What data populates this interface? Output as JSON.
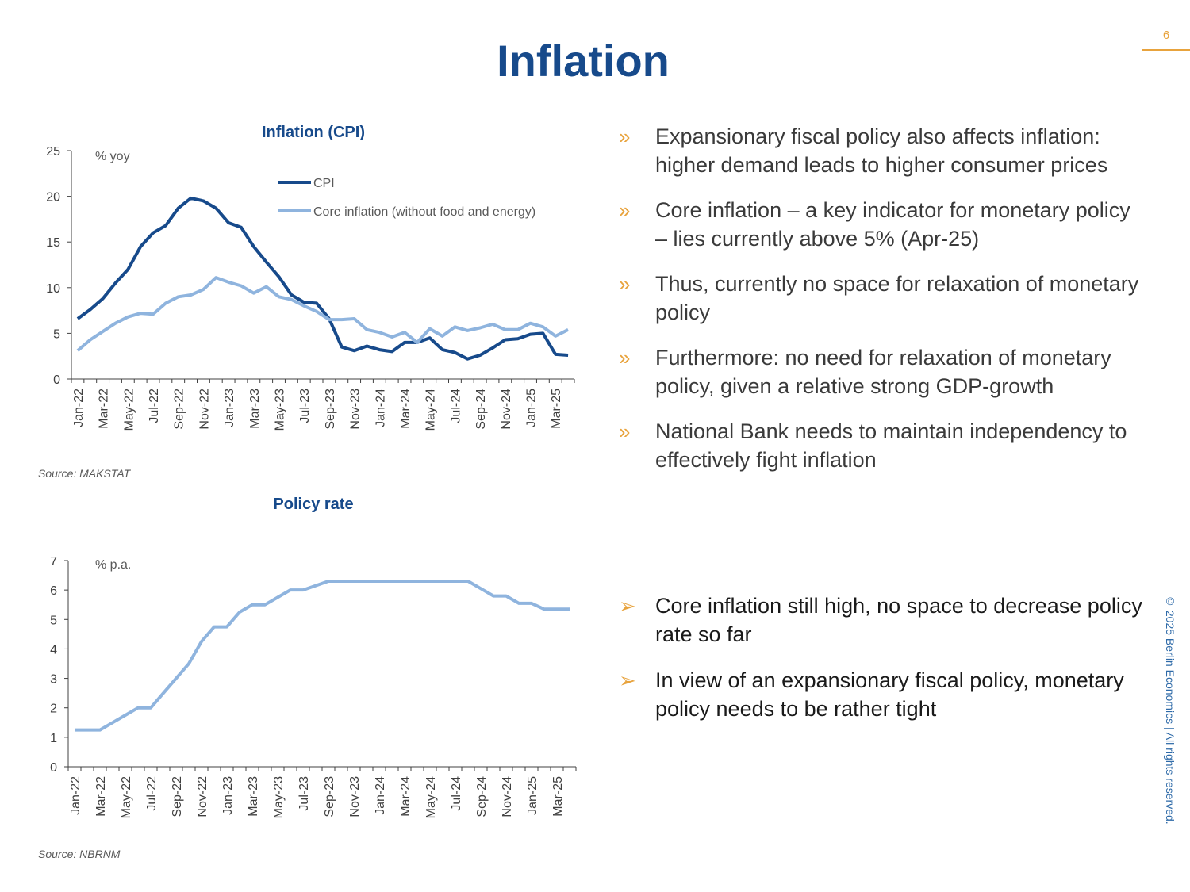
{
  "page": {
    "title": "Inflation",
    "page_number": "6",
    "copyright": "© 2025 Berlin Economics | All rights reserved."
  },
  "bullets": [
    {
      "marker": "»",
      "text": "Expansionary fiscal policy also affects inflation: higher demand leads to higher consumer prices"
    },
    {
      "marker": "»",
      "text": "Core inflation – a key indicator for monetary policy – lies currently above 5% (Apr-25)"
    },
    {
      "marker": "»",
      "text": "Thus, currently no space for relaxation of monetary policy"
    },
    {
      "marker": "»",
      "text": "Furthermore: no need for relaxation of monetary policy, given a relative strong GDP-growth"
    },
    {
      "marker": "»",
      "text": "National Bank needs to maintain independency to effectively fight inflation"
    }
  ],
  "conclusions": [
    {
      "marker": "➢",
      "text": "Core inflation still high, no space to decrease policy rate so far"
    },
    {
      "marker": "➢",
      "text": "In view of an expansionary fiscal policy, monetary policy needs to be rather tight"
    }
  ],
  "colors": {
    "cpi": "#174a8b",
    "core": "#8fb4de",
    "rate": "#8fb4de",
    "accent": "#e8a33d"
  },
  "chart_data": [
    {
      "type": "line",
      "title": "Inflation (CPI)",
      "unit_label": "% yoy",
      "source": "Source: MAKSTAT",
      "ylim": [
        0,
        25
      ],
      "yticks": [
        0,
        5,
        10,
        15,
        20,
        25
      ],
      "tick_labels": [
        "Jan-22",
        "Mar-22",
        "May-22",
        "Jul-22",
        "Sep-22",
        "Nov-22",
        "Jan-23",
        "Mar-23",
        "May-23",
        "Jul-23",
        "Sep-23",
        "Nov-23",
        "Jan-24",
        "Mar-24",
        "May-24",
        "Jul-24",
        "Sep-24",
        "Nov-24",
        "Jan-25",
        "Mar-25"
      ],
      "n_points": 40,
      "legend_position": "top-right",
      "series": [
        {
          "name": "CPI",
          "values": [
            6.6,
            7.6,
            8.8,
            10.5,
            12.0,
            14.5,
            16.0,
            16.8,
            18.7,
            19.8,
            19.5,
            18.7,
            17.1,
            16.6,
            14.5,
            12.8,
            11.2,
            9.2,
            8.4,
            8.3,
            6.6,
            3.5,
            3.1,
            3.6,
            3.2,
            3.0,
            4.0,
            4.0,
            4.5,
            3.2,
            2.9,
            2.2,
            2.6,
            3.4,
            4.3,
            4.4,
            4.9,
            5.0,
            2.7,
            2.6
          ]
        },
        {
          "name": "Core inflation (without food and energy)",
          "values": [
            3.1,
            4.3,
            5.2,
            6.1,
            6.8,
            7.2,
            7.1,
            8.3,
            9.0,
            9.2,
            9.8,
            11.1,
            10.6,
            10.2,
            9.4,
            10.1,
            9.0,
            8.7,
            8.0,
            7.4,
            6.5,
            6.5,
            6.6,
            5.4,
            5.1,
            4.6,
            5.1,
            4.0,
            5.5,
            4.7,
            5.7,
            5.3,
            5.6,
            6.0,
            5.4,
            5.4,
            6.1,
            5.7,
            4.7,
            5.4
          ]
        }
      ]
    },
    {
      "type": "line",
      "title": "Policy rate",
      "unit_label": "% p.a.",
      "source": "Source: NBRNM",
      "ylim": [
        0,
        7
      ],
      "yticks": [
        0,
        1,
        2,
        3,
        4,
        5,
        6,
        7
      ],
      "tick_labels": [
        "Jan-22",
        "Mar-22",
        "May-22",
        "Jul-22",
        "Sep-22",
        "Nov-22",
        "Jan-23",
        "Mar-23",
        "May-23",
        "Jul-23",
        "Sep-23",
        "Nov-23",
        "Jan-24",
        "Mar-24",
        "May-24",
        "Jul-24",
        "Sep-24",
        "Nov-24",
        "Jan-25",
        "Mar-25"
      ],
      "n_points": 40,
      "series": [
        {
          "name": "Policy rate",
          "values": [
            1.25,
            1.25,
            1.25,
            1.5,
            1.75,
            2.0,
            2.0,
            2.5,
            3.0,
            3.5,
            4.25,
            4.75,
            4.75,
            5.25,
            5.5,
            5.5,
            5.75,
            6.0,
            6.0,
            6.15,
            6.3,
            6.3,
            6.3,
            6.3,
            6.3,
            6.3,
            6.3,
            6.3,
            6.3,
            6.3,
            6.3,
            6.3,
            6.05,
            5.8,
            5.8,
            5.55,
            5.55,
            5.35,
            5.35,
            5.35
          ]
        }
      ]
    }
  ]
}
